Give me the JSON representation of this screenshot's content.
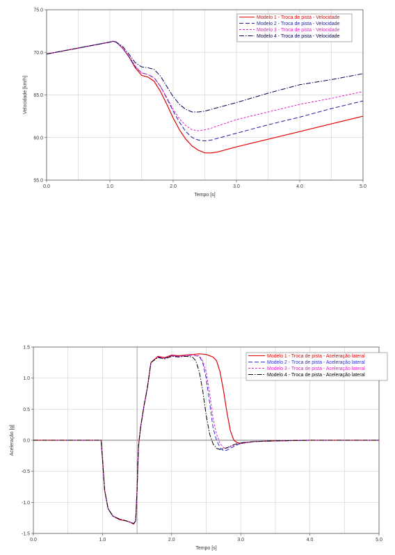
{
  "chart_data": [
    {
      "type": "line",
      "xlabel": "Tempo [s]",
      "ylabel": "Velocidade [km/h]",
      "xlim": [
        0,
        5
      ],
      "ylim": [
        55,
        75
      ],
      "xticks": [
        "0.0",
        "1.0",
        "2.0",
        "3.0",
        "4.0",
        "5.0"
      ],
      "yticks": [
        "55.0",
        "60.0",
        "65.0",
        "70.0",
        "75.0"
      ],
      "grid": true,
      "legend_position": "top-right",
      "series": [
        {
          "name": "Modelo 1 - Troca de pista - Velocidade",
          "color": "#e00000",
          "dash": "solid",
          "x": [
            0,
            0.5,
            1.0,
            1.05,
            1.1,
            1.2,
            1.3,
            1.4,
            1.5,
            1.6,
            1.7,
            1.8,
            1.9,
            2.0,
            2.1,
            2.2,
            2.3,
            2.4,
            2.5,
            2.6,
            2.7,
            2.8,
            3.0,
            3.5,
            4.0,
            4.5,
            5.0
          ],
          "y": [
            69.8,
            70.5,
            71.2,
            71.3,
            71.2,
            70.5,
            69.5,
            68.2,
            67.3,
            67.1,
            66.6,
            65.4,
            63.9,
            62.3,
            60.9,
            59.8,
            59.0,
            58.5,
            58.2,
            58.2,
            58.3,
            58.5,
            58.9,
            59.8,
            60.7,
            61.6,
            62.5
          ]
        },
        {
          "name": "Modelo 2 - Troca de pista - Velocidade",
          "color": "#1a1aa0",
          "dash": "6,3",
          "x": [
            0,
            0.5,
            1.0,
            1.05,
            1.1,
            1.2,
            1.3,
            1.4,
            1.5,
            1.6,
            1.7,
            1.8,
            1.9,
            2.0,
            2.1,
            2.2,
            2.3,
            2.4,
            2.5,
            2.6,
            2.8,
            3.0,
            3.5,
            4.0,
            4.5,
            5.0
          ],
          "y": [
            69.8,
            70.5,
            71.2,
            71.3,
            71.2,
            70.5,
            69.5,
            68.3,
            67.6,
            67.4,
            67.0,
            66.0,
            64.6,
            63.1,
            61.8,
            60.7,
            60.0,
            59.7,
            59.6,
            59.7,
            60.1,
            60.5,
            61.5,
            62.4,
            63.4,
            64.3
          ]
        },
        {
          "name": "Modelo 3 - Troca de pista - Velocidade",
          "color": "#e020c0",
          "dash": "3,2",
          "x": [
            0,
            0.5,
            1.0,
            1.05,
            1.1,
            1.2,
            1.3,
            1.4,
            1.5,
            1.6,
            1.7,
            1.8,
            1.9,
            2.0,
            2.1,
            2.2,
            2.3,
            2.4,
            2.5,
            2.6,
            2.8,
            3.0,
            3.5,
            4.0,
            4.5,
            5.0
          ],
          "y": [
            69.8,
            70.5,
            71.2,
            71.3,
            71.2,
            70.5,
            69.6,
            68.4,
            67.6,
            67.4,
            67.0,
            66.0,
            64.7,
            63.3,
            62.2,
            61.4,
            60.9,
            60.8,
            60.9,
            61.1,
            61.6,
            62.1,
            63.0,
            63.9,
            64.6,
            65.4
          ]
        },
        {
          "name": "Modelo 4 - Troca de pista - Velocidade",
          "color": "#000050",
          "dash": "7,2,1.5,2",
          "x": [
            0,
            0.5,
            1.0,
            1.05,
            1.1,
            1.2,
            1.3,
            1.4,
            1.5,
            1.6,
            1.7,
            1.8,
            1.9,
            2.0,
            2.1,
            2.2,
            2.3,
            2.4,
            2.5,
            2.6,
            2.8,
            3.0,
            3.5,
            4.0,
            4.5,
            5.0
          ],
          "y": [
            69.8,
            70.5,
            71.2,
            71.3,
            71.2,
            70.7,
            69.8,
            68.8,
            68.3,
            68.2,
            68.0,
            67.2,
            66.0,
            64.8,
            63.9,
            63.3,
            63.0,
            63.0,
            63.1,
            63.3,
            63.7,
            64.1,
            65.2,
            66.2,
            66.8,
            67.5
          ]
        }
      ]
    },
    {
      "type": "line",
      "xlabel": "Tempo [s]",
      "ylabel": "Aceleração [g]",
      "xlim": [
        0,
        5
      ],
      "ylim": [
        -1.5,
        1.5
      ],
      "xticks": [
        "0.0",
        "1.0",
        "2.0",
        "3.0",
        "4.0",
        "5.0"
      ],
      "yticks": [
        "-1.5",
        "-1.0",
        "-0.5",
        "0.0",
        "0.5",
        "1.0",
        "1.5"
      ],
      "grid": true,
      "legend_position": "top-right",
      "series": [
        {
          "name": "Modelo 1 - Troca de pista - Aceleração lateral",
          "color": "#e00000",
          "dash": "solid",
          "x": [
            0,
            0.98,
            1.0,
            1.03,
            1.08,
            1.15,
            1.25,
            1.35,
            1.4,
            1.45,
            1.48,
            1.5,
            1.52,
            1.55,
            1.6,
            1.65,
            1.7,
            1.8,
            1.9,
            2.0,
            2.1,
            2.2,
            2.3,
            2.4,
            2.5,
            2.6,
            2.65,
            2.7,
            2.75,
            2.8,
            2.85,
            2.9,
            2.95,
            3.0,
            3.2,
            3.5,
            4.0,
            5.0
          ],
          "y": [
            0,
            0,
            -0.3,
            -0.8,
            -1.1,
            -1.22,
            -1.28,
            -1.3,
            -1.32,
            -1.35,
            -1.3,
            -0.8,
            -0.1,
            0.2,
            0.55,
            0.85,
            1.25,
            1.35,
            1.33,
            1.37,
            1.36,
            1.37,
            1.38,
            1.39,
            1.38,
            1.34,
            1.28,
            1.1,
            0.8,
            0.45,
            0.15,
            0.0,
            -0.04,
            -0.05,
            -0.02,
            -0.01,
            0,
            0
          ]
        },
        {
          "name": "Modelo 2 - Troca de pista - Aceleração lateral",
          "color": "#2a2ad8",
          "dash": "6,3",
          "x": [
            0,
            0.98,
            1.0,
            1.03,
            1.08,
            1.15,
            1.25,
            1.35,
            1.4,
            1.45,
            1.48,
            1.5,
            1.52,
            1.55,
            1.6,
            1.65,
            1.7,
            1.8,
            1.9,
            2.0,
            2.1,
            2.2,
            2.3,
            2.4,
            2.45,
            2.5,
            2.55,
            2.6,
            2.65,
            2.7,
            2.75,
            2.8,
            2.9,
            3.0,
            3.2,
            3.5,
            4.0,
            5.0
          ],
          "y": [
            0,
            0,
            -0.3,
            -0.8,
            -1.1,
            -1.22,
            -1.27,
            -1.3,
            -1.32,
            -1.34,
            -1.3,
            -0.8,
            -0.1,
            0.2,
            0.55,
            0.85,
            1.25,
            1.34,
            1.32,
            1.36,
            1.35,
            1.36,
            1.37,
            1.35,
            1.25,
            1.0,
            0.6,
            0.2,
            0.0,
            -0.12,
            -0.17,
            -0.16,
            -0.1,
            -0.05,
            -0.02,
            -0.01,
            0,
            0
          ]
        },
        {
          "name": "Modelo 3 - Troca de pista - Aceleração lateral",
          "color": "#e020c0",
          "dash": "3,2",
          "x": [
            0,
            0.98,
            1.0,
            1.03,
            1.08,
            1.15,
            1.25,
            1.35,
            1.4,
            1.45,
            1.48,
            1.5,
            1.52,
            1.55,
            1.6,
            1.65,
            1.7,
            1.8,
            1.9,
            2.0,
            2.1,
            2.2,
            2.3,
            2.4,
            2.45,
            2.5,
            2.55,
            2.6,
            2.65,
            2.7,
            2.75,
            2.8,
            2.9,
            3.0,
            3.2,
            3.5,
            4.0,
            5.0
          ],
          "y": [
            0,
            0,
            -0.3,
            -0.8,
            -1.1,
            -1.22,
            -1.27,
            -1.3,
            -1.32,
            -1.34,
            -1.3,
            -0.8,
            -0.1,
            0.2,
            0.55,
            0.85,
            1.25,
            1.34,
            1.32,
            1.36,
            1.35,
            1.36,
            1.37,
            1.36,
            1.28,
            1.1,
            0.75,
            0.35,
            0.1,
            -0.05,
            -0.12,
            -0.13,
            -0.08,
            -0.04,
            -0.02,
            -0.01,
            0,
            0
          ]
        },
        {
          "name": "Modelo 4 - Troca de pista - Aceleração lateral",
          "color": "#000000",
          "dash": "7,2,1.5,2",
          "x": [
            0,
            0.98,
            1.0,
            1.03,
            1.08,
            1.15,
            1.25,
            1.35,
            1.4,
            1.45,
            1.48,
            1.5,
            1.52,
            1.55,
            1.6,
            1.65,
            1.7,
            1.8,
            1.9,
            2.0,
            2.1,
            2.2,
            2.3,
            2.35,
            2.4,
            2.45,
            2.5,
            2.55,
            2.6,
            2.65,
            2.7,
            2.8,
            2.9,
            3.0,
            3.2,
            3.5,
            4.0,
            5.0
          ],
          "y": [
            0,
            0,
            -0.3,
            -0.8,
            -1.1,
            -1.22,
            -1.27,
            -1.3,
            -1.32,
            -1.34,
            -1.3,
            -0.8,
            -0.1,
            0.2,
            0.55,
            0.85,
            1.25,
            1.33,
            1.31,
            1.35,
            1.34,
            1.35,
            1.34,
            1.28,
            1.1,
            0.8,
            0.4,
            0.1,
            -0.06,
            -0.13,
            -0.15,
            -0.12,
            -0.07,
            -0.04,
            -0.02,
            -0.01,
            0,
            0
          ]
        }
      ]
    }
  ]
}
